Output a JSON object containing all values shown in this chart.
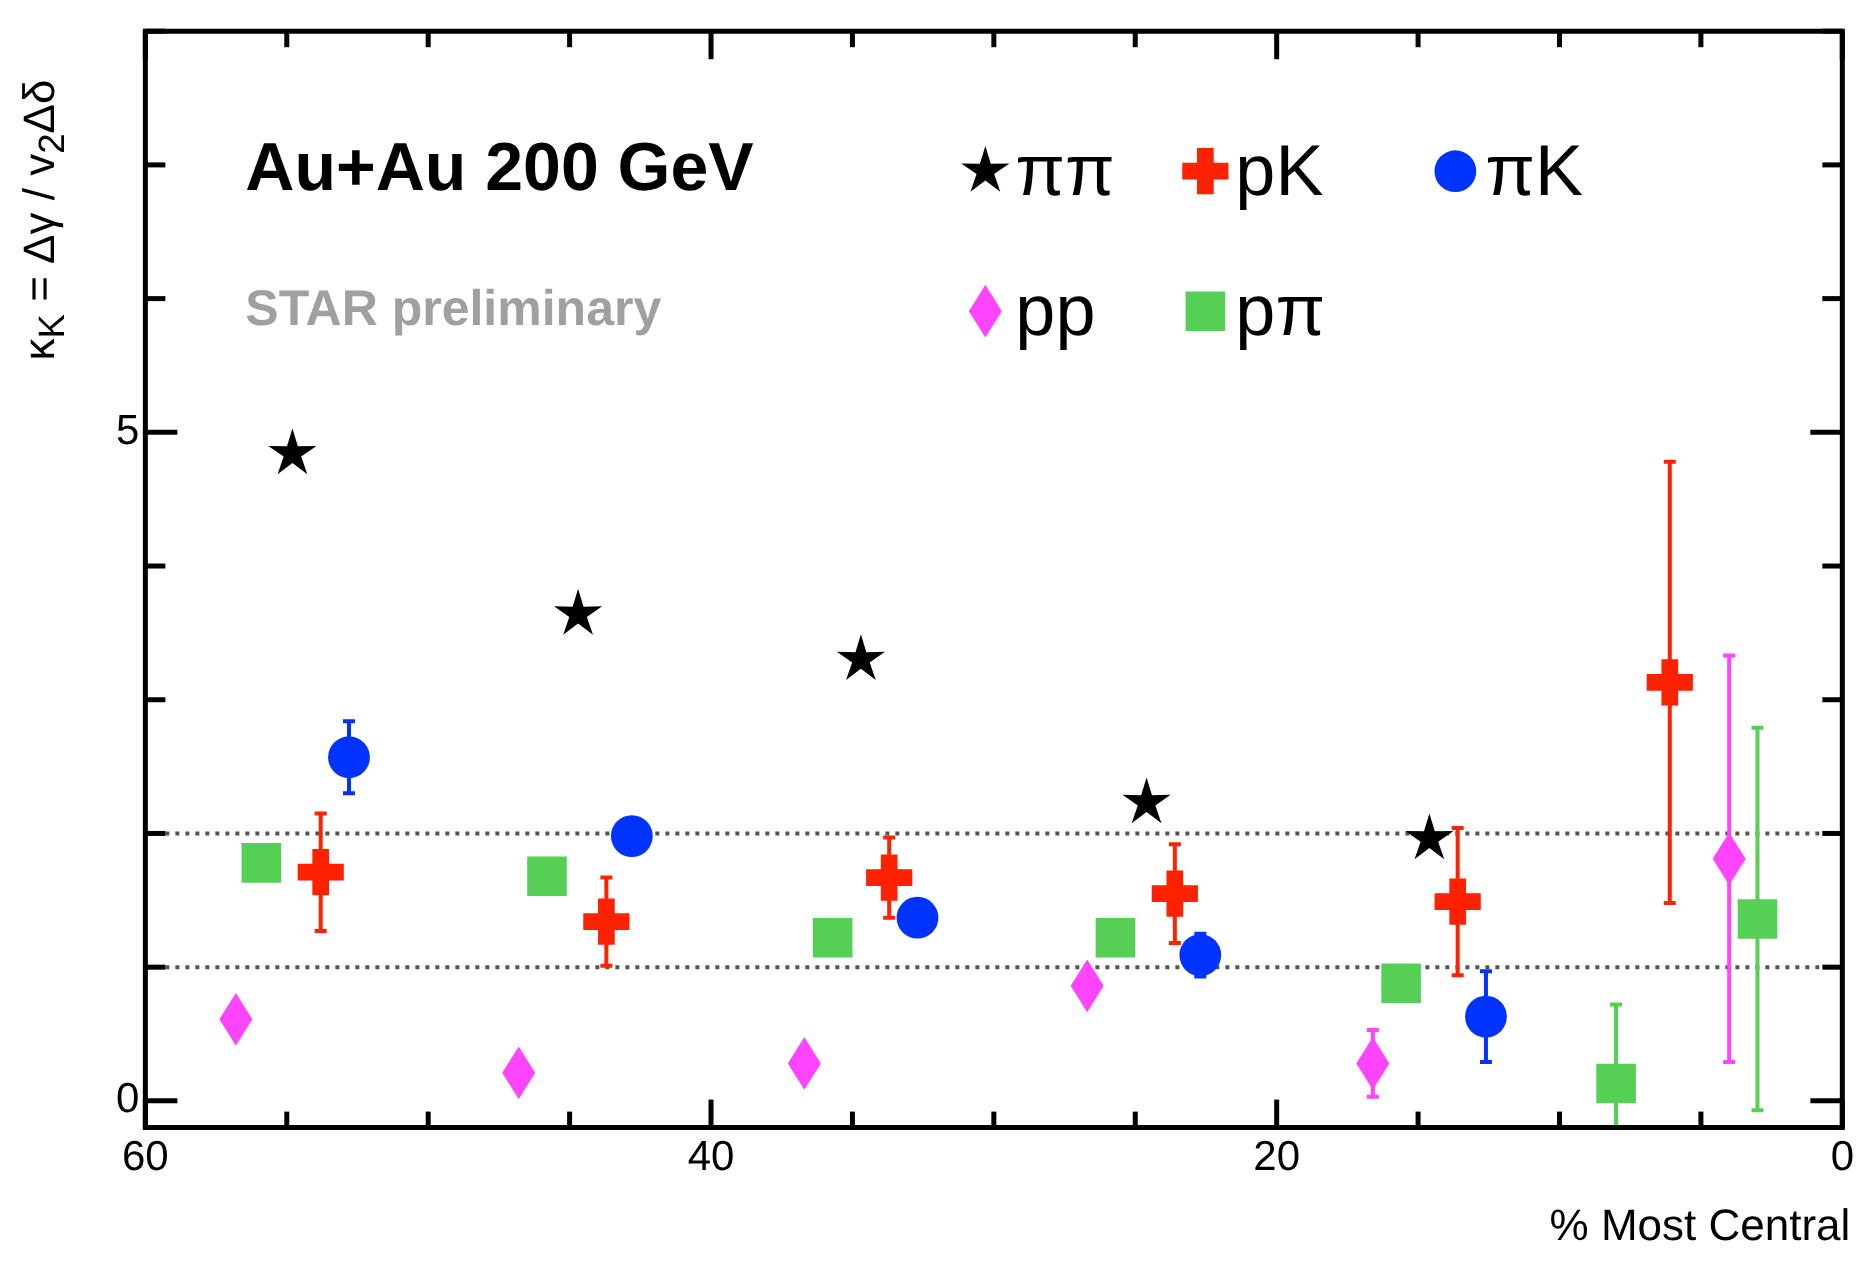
{
  "chart_data": {
    "type": "scatter",
    "title": "Au+Au 200 GeV",
    "xlabel": "% Most Central",
    "ylabel": "κ$_{K}$ = Δγ / v$_{2}$Δδ",
    "annotations": [
      "STAR preliminary"
    ],
    "xlim": [
      60,
      0
    ],
    "xticks": [
      60,
      {
        "value": 55,
        "label": null
      },
      {
        "value": 50,
        "label": null
      },
      {
        "value": 45,
        "label": null
      },
      40,
      {
        "value": 35,
        "label": null
      },
      {
        "value": 30,
        "label": null
      },
      {
        "value": 25,
        "label": null
      },
      20,
      {
        "value": 15,
        "label": null
      },
      {
        "value": 10,
        "label": null
      },
      {
        "value": 5,
        "label": null
      },
      0
    ],
    "ylim": [
      -0.2,
      8
    ],
    "yticks": [
      0,
      {
        "value": 1,
        "label": null
      },
      {
        "value": 2,
        "label": null
      },
      {
        "value": 3,
        "label": null
      },
      {
        "value": 4,
        "label": null
      },
      5,
      {
        "value": 6,
        "label": null
      },
      {
        "value": 7,
        "label": null
      },
      {
        "value": 8,
        "label": null
      }
    ],
    "grid": false,
    "legend": "top",
    "ref_lines": [
      {
        "axis": "y",
        "value": 1,
        "color": "#555555",
        "line_style": "dotted"
      },
      {
        "axis": "y",
        "value": 2,
        "color": "#555555",
        "line_style": "dotted"
      }
    ],
    "series": [
      {
        "name": "ππ",
        "color": "#000000",
        "marker": "star",
        "x": [
          54.8,
          44.7,
          34.7,
          24.6,
          14.6
        ],
        "values": [
          4.84,
          3.64,
          3.3,
          2.23,
          1.96
        ]
      },
      {
        "name": "pK",
        "color": "#ff2200",
        "marker": "cross",
        "x": [
          53.8,
          43.7,
          33.7,
          23.6,
          13.6,
          6.1
        ],
        "values": [
          1.71,
          1.34,
          1.67,
          1.55,
          1.49,
          3.13
        ],
        "errors": [
          0.44,
          0.33,
          0.3,
          0.37,
          0.55,
          1.65
        ]
      },
      {
        "name": "πK",
        "color": "#0033ff",
        "marker": "circle",
        "x": [
          52.8,
          42.8,
          32.7,
          22.7,
          12.6
        ],
        "values": [
          2.57,
          1.98,
          1.37,
          1.09,
          0.63
        ],
        "errors": [
          0.27,
          0.12,
          null,
          0.16,
          0.34
        ]
      },
      {
        "name": "pp",
        "color": "#ff44ff",
        "marker": "diamond",
        "x": [
          56.8,
          46.8,
          36.7,
          26.7,
          16.6,
          4.0
        ],
        "values": [
          0.61,
          0.21,
          0.28,
          0.86,
          0.28,
          1.81
        ],
        "errors": [
          null,
          null,
          null,
          null,
          0.25,
          1.52
        ]
      },
      {
        "name": "pπ",
        "color": "#55d055",
        "marker": "square",
        "x": [
          55.9,
          45.8,
          35.7,
          25.7,
          15.6,
          8.0,
          3.0
        ],
        "values": [
          1.78,
          1.68,
          1.22,
          1.22,
          0.88,
          0.13,
          1.36
        ],
        "errors": [
          null,
          null,
          null,
          null,
          0.12,
          [
            -0.2,
            0.72
          ],
          [
            -0.07,
            2.79
          ]
        ]
      }
    ]
  }
}
